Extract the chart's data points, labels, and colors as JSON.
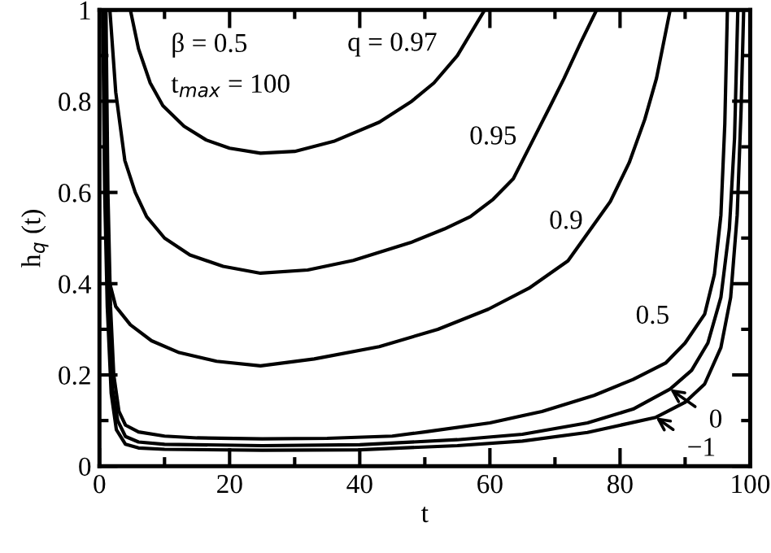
{
  "chart_data": {
    "type": "line",
    "xlabel": "t",
    "ylabel": "h$_{q}$ (t)",
    "xlim": [
      0,
      100
    ],
    "ylim": [
      0,
      1
    ],
    "xticks": [
      0,
      20,
      40,
      60,
      80,
      100
    ],
    "yticks": [
      0,
      0.2,
      0.4,
      0.6,
      0.8,
      1
    ],
    "grid": false,
    "legend": false,
    "marker": "none",
    "line_style": "solid",
    "series": [
      {
        "color": "#000000",
        "x": [
          4.75,
          6,
          7.8,
          9.75,
          13,
          16.4,
          20,
          24.75,
          30,
          36,
          43,
          48,
          51.4,
          55,
          59.2
        ],
        "values": [
          1,
          0.915,
          0.84,
          0.79,
          0.745,
          0.715,
          0.697,
          0.686,
          0.69,
          0.712,
          0.754,
          0.8,
          0.84,
          0.9,
          1
        ]
      },
      {
        "color": "#000000",
        "x": [
          1.6,
          2.5,
          3.9,
          5.5,
          7.25,
          10,
          13.9,
          19,
          24.75,
          32,
          39,
          47.8,
          53,
          57,
          60.5,
          63.6,
          66.8,
          69.3,
          71.4,
          74,
          76.4
        ],
        "values": [
          1,
          0.82,
          0.67,
          0.6,
          0.547,
          0.5,
          0.463,
          0.438,
          0.423,
          0.43,
          0.451,
          0.49,
          0.52,
          0.547,
          0.585,
          0.63,
          0.72,
          0.79,
          0.85,
          0.93,
          1
        ]
      },
      {
        "color": "#000000",
        "x": [
          0.8,
          0.95,
          1.2,
          1.6,
          2.5,
          4.75,
          8,
          12.25,
          18,
          24.75,
          33,
          43,
          52,
          59.75,
          66,
          72,
          74.5,
          78.5,
          81.4,
          83.8,
          85.6,
          87.7
        ],
        "values": [
          1,
          0.7,
          0.5,
          0.4,
          0.35,
          0.31,
          0.275,
          0.249,
          0.23,
          0.22,
          0.235,
          0.262,
          0.3,
          0.344,
          0.39,
          0.45,
          0.5,
          0.58,
          0.665,
          0.76,
          0.85,
          1
        ]
      },
      {
        "color": "#000000",
        "x": [
          1.0,
          1.3,
          1.7,
          2.2,
          3,
          4,
          6,
          10,
          15,
          25,
          35,
          45,
          50,
          60,
          68,
          76,
          82,
          87,
          90,
          93,
          94.5,
          95.5,
          96.1,
          96.5
        ],
        "values": [
          1,
          0.6,
          0.35,
          0.2,
          0.12,
          0.09,
          0.075,
          0.066,
          0.062,
          0.06,
          0.061,
          0.066,
          0.075,
          0.095,
          0.12,
          0.155,
          0.19,
          0.226,
          0.27,
          0.333,
          0.42,
          0.55,
          0.75,
          1
        ]
      },
      {
        "color": "#000000",
        "x": [
          0.7,
          1.0,
          1.4,
          2,
          2.8,
          4,
          6,
          10,
          25,
          40,
          55,
          65,
          75,
          82,
          87.7,
          91,
          93.5,
          95.5,
          96.8,
          97.6,
          98.1
        ],
        "values": [
          1,
          0.6,
          0.35,
          0.17,
          0.1,
          0.065,
          0.053,
          0.048,
          0.045,
          0.047,
          0.058,
          0.07,
          0.095,
          0.125,
          0.169,
          0.21,
          0.27,
          0.37,
          0.52,
          0.72,
          1
        ]
      },
      {
        "color": "#000000",
        "x": [
          0.5,
          0.8,
          1.2,
          1.8,
          2.6,
          4,
          6,
          10,
          25,
          40,
          55,
          65,
          75,
          85.5,
          90,
          93,
          95.5,
          97,
          98,
          98.6,
          99
        ],
        "values": [
          1,
          0.6,
          0.35,
          0.16,
          0.08,
          0.048,
          0.04,
          0.037,
          0.035,
          0.036,
          0.045,
          0.055,
          0.074,
          0.107,
          0.14,
          0.18,
          0.26,
          0.37,
          0.55,
          0.78,
          1
        ]
      }
    ],
    "annotations": [
      "β = 0.5",
      "t$_{max}$ = 100",
      "q = 0.97",
      "0.95",
      "0.9",
      "0.5",
      {
        "text": "0",
        "x": 87.7,
        "y": 0.169
      },
      {
        "text": "−1",
        "x": 85.5,
        "y": 0.107
      }
    ]
  }
}
